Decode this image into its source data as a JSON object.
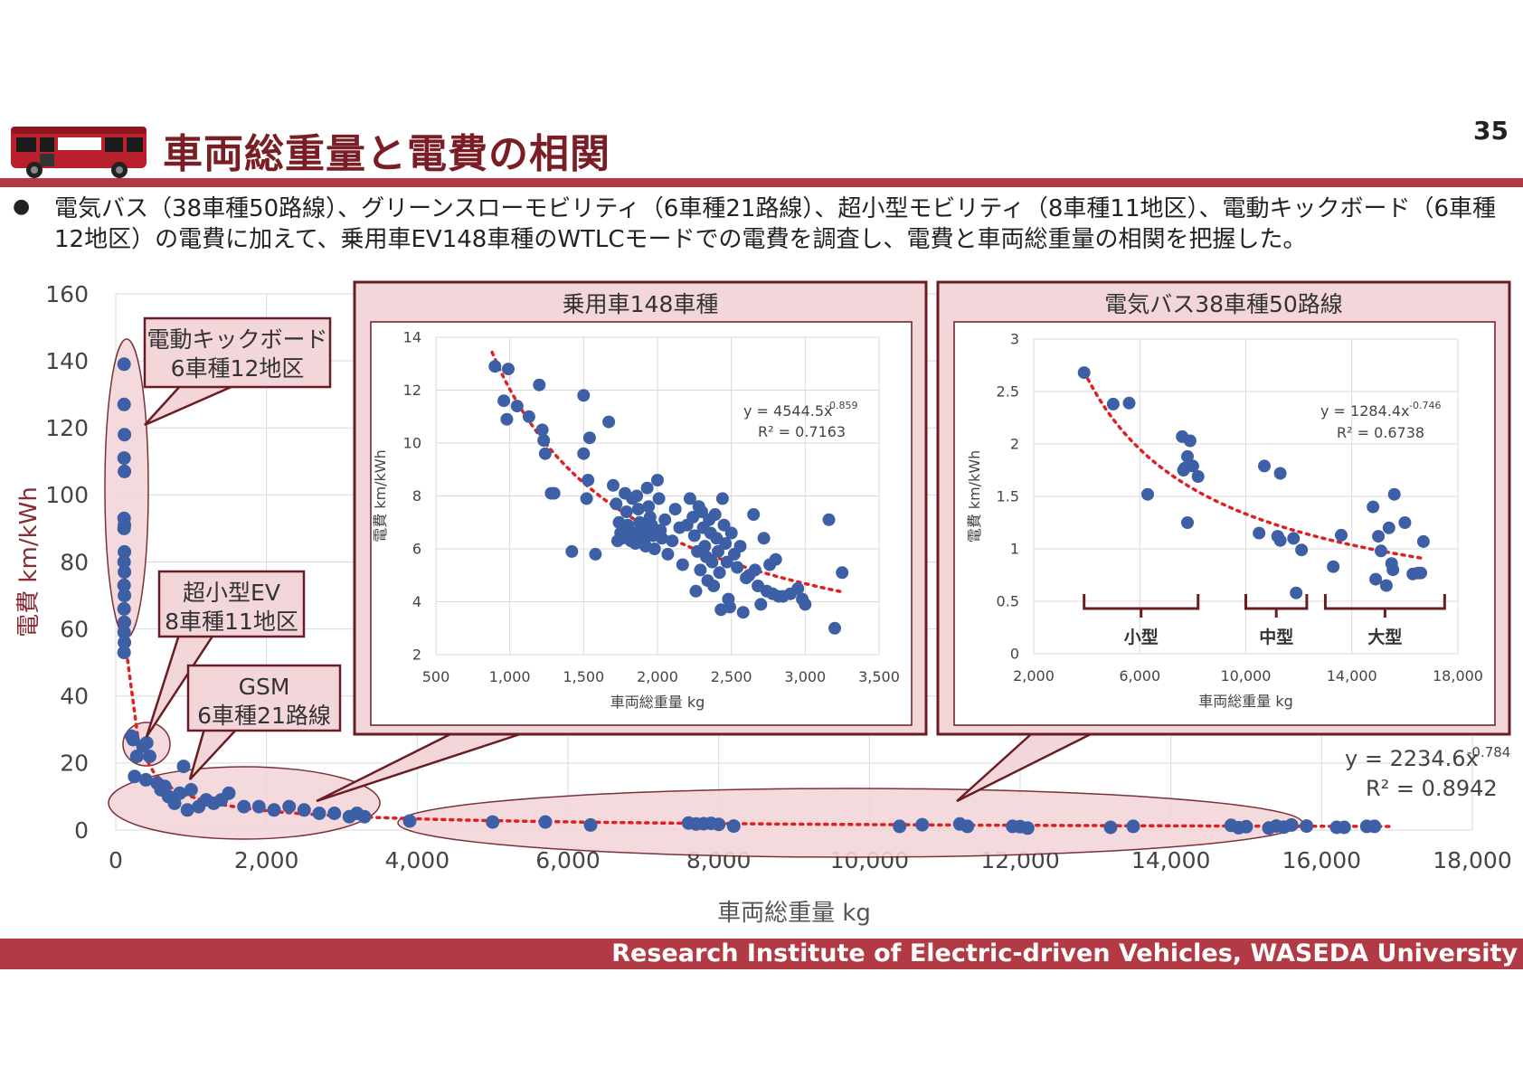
{
  "header": {
    "title": "車両総重量と電費の相関",
    "page_number": "35",
    "bus_icon": "bus-icon"
  },
  "bullet": {
    "text": "電気バス（38車種50路線）、グリーンスローモビリティ（6車種21路線）、超小型モビリティ（8車種11地区）、電動キックボード（6車種12地区）の電費に加えて、乗用車EV148車種のWTLCモードでの電費を調査し、電費と車両総重量の相関を把握した。"
  },
  "footer": {
    "text": "Research Institute of Electric-driven Vehicles, WASEDA University"
  },
  "colors": {
    "accent": "#b23a44",
    "title": "#7a1d24",
    "point": "#3d5fa6",
    "trend": "#e02020",
    "callout_fill": "#f3d6d9",
    "callout_stroke": "#6b1c22"
  },
  "chart_data": [
    {
      "id": "main",
      "type": "scatter",
      "xlabel": "車両総重量 kg",
      "ylabel": "電費 km/kWh",
      "xlim": [
        0,
        18000
      ],
      "ylim": [
        0,
        160
      ],
      "xticks": [
        "0",
        "2,000",
        "4,000",
        "6,000",
        "8,000",
        "10,000",
        "12,000",
        "14,000",
        "16,000",
        "18,000"
      ],
      "yticks": [
        "0",
        "20",
        "40",
        "60",
        "80",
        "100",
        "120",
        "140",
        "160"
      ],
      "trend": {
        "a": 2234.6,
        "b": -0.784,
        "equation": "y = 2234.6x",
        "exponent": "-0.784",
        "r2": "R² = 0.8942"
      },
      "groups": [
        {
          "name": "電動キックボード",
          "label_line1": "電動キックボード",
          "label_line2": "6車種12地区",
          "points": [
            [
              110,
              139
            ],
            [
              110,
              127
            ],
            [
              115,
              118
            ],
            [
              110,
              111
            ],
            [
              115,
              107
            ],
            [
              110,
              93
            ],
            [
              115,
              91
            ],
            [
              110,
              90
            ],
            [
              115,
              83
            ],
            [
              110,
              80
            ],
            [
              115,
              77
            ],
            [
              110,
              73
            ],
            [
              115,
              70
            ],
            [
              110,
              66
            ],
            [
              115,
              62
            ],
            [
              110,
              59
            ],
            [
              115,
              56
            ],
            [
              110,
              53
            ]
          ]
        },
        {
          "name": "超小型EV",
          "label_line1": "超小型EV",
          "label_line2": "8車種11地区",
          "points": [
            [
              210,
              28
            ],
            [
              280,
              22
            ],
            [
              410,
              26
            ],
            [
              450,
              22
            ],
            [
              360,
              25
            ],
            [
              230,
              27
            ]
          ]
        },
        {
          "name": "GSM",
          "label_line1": "GSM",
          "label_line2": "6車種21路線",
          "points": [
            [
              250,
              16
            ],
            [
              400,
              15
            ],
            [
              600,
              12
            ],
            [
              700,
              10
            ],
            [
              780,
              8
            ],
            [
              850,
              11
            ],
            [
              900,
              19
            ],
            [
              1000,
              12
            ],
            [
              1100,
              7
            ],
            [
              1200,
              9
            ],
            [
              1300,
              8
            ],
            [
              1500,
              11
            ],
            [
              1700,
              7
            ],
            [
              1900,
              7
            ],
            [
              2100,
              6
            ],
            [
              2300,
              7
            ],
            [
              2500,
              6
            ],
            [
              2700,
              5
            ],
            [
              2900,
              5
            ],
            [
              3100,
              4
            ],
            [
              3200,
              5
            ],
            [
              3300,
              4
            ],
            [
              550,
              14
            ],
            [
              650,
              13
            ],
            [
              950,
              6
            ],
            [
              1400,
              9
            ]
          ]
        },
        {
          "name": "乗用車",
          "points": []
        },
        {
          "name": "電気バス",
          "label_line1": "電気バス38車種50路線",
          "points": [
            [
              3900,
              2.7
            ],
            [
              5000,
              2.4
            ],
            [
              5700,
              2.4
            ],
            [
              6300,
              1.5
            ],
            [
              7600,
              2.1
            ],
            [
              7700,
              1.8
            ],
            [
              7800,
              1.9
            ],
            [
              7900,
              2.0
            ],
            [
              8000,
              1.7
            ],
            [
              8200,
              1.2
            ],
            [
              10400,
              1.1
            ],
            [
              10700,
              1.6
            ],
            [
              11200,
              1.8
            ],
            [
              11300,
              1.1
            ],
            [
              11900,
              1.1
            ],
            [
              12000,
              1.0
            ],
            [
              12100,
              0.6
            ],
            [
              13200,
              0.8
            ],
            [
              13500,
              1.1
            ],
            [
              14800,
              1.4
            ],
            [
              14900,
              0.7
            ],
            [
              15000,
              1.0
            ],
            [
              15300,
              0.6
            ],
            [
              15400,
              1.2
            ],
            [
              15500,
              0.9
            ],
            [
              15600,
              1.5
            ],
            [
              15800,
              1.2
            ],
            [
              16200,
              0.8
            ],
            [
              16300,
              0.8
            ],
            [
              16600,
              1.1
            ],
            [
              16700,
              1.1
            ]
          ]
        }
      ],
      "callouts": {
        "kick": "電動キックボード\n6車種12地区",
        "ev": "超小型EV\n8車種11地区",
        "gsm": "GSM\n6車種21路線"
      }
    },
    {
      "id": "inset-cars",
      "type": "scatter",
      "title": "乗用車148車種",
      "xlabel": "車両総重量 kg",
      "ylabel": "電費 km/kWh",
      "xlim": [
        500,
        3500
      ],
      "ylim": [
        2,
        14
      ],
      "xticks": [
        "500",
        "1,000",
        "1,500",
        "2,000",
        "2,500",
        "3,000",
        "3,500"
      ],
      "yticks": [
        "2",
        "4",
        "6",
        "8",
        "10",
        "12",
        "14"
      ],
      "trend": {
        "a": 4544.5,
        "b": -0.859,
        "equation": "y = 4544.5x",
        "exponent": "-0.859",
        "r2": "R² = 0.7163"
      },
      "points": [
        [
          900,
          12.9
        ],
        [
          990,
          12.8
        ],
        [
          960,
          11.6
        ],
        [
          1050,
          11.4
        ],
        [
          980,
          10.9
        ],
        [
          1130,
          11.0
        ],
        [
          1200,
          12.2
        ],
        [
          1220,
          10.5
        ],
        [
          1230,
          10.1
        ],
        [
          1240,
          9.6
        ],
        [
          1280,
          8.1
        ],
        [
          1300,
          8.1
        ],
        [
          1500,
          11.8
        ],
        [
          1500,
          9.6
        ],
        [
          1540,
          10.2
        ],
        [
          1520,
          7.9
        ],
        [
          1530,
          8.6
        ],
        [
          1420,
          5.9
        ],
        [
          1670,
          10.8
        ],
        [
          1700,
          8.4
        ],
        [
          1720,
          7.7
        ],
        [
          1730,
          6.3
        ],
        [
          1740,
          7.0
        ],
        [
          1750,
          6.6
        ],
        [
          1760,
          6.4
        ],
        [
          1780,
          8.1
        ],
        [
          1790,
          7.4
        ],
        [
          1800,
          6.9
        ],
        [
          1810,
          6.7
        ],
        [
          1820,
          6.3
        ],
        [
          1830,
          7.9
        ],
        [
          1840,
          6.5
        ],
        [
          1850,
          6.2
        ],
        [
          1860,
          8.0
        ],
        [
          1870,
          7.5
        ],
        [
          1880,
          7.0
        ],
        [
          1890,
          6.8
        ],
        [
          1900,
          6.6
        ],
        [
          1910,
          6.3
        ],
        [
          1920,
          6.1
        ],
        [
          1930,
          8.3
        ],
        [
          1940,
          7.6
        ],
        [
          1950,
          7.2
        ],
        [
          1960,
          6.9
        ],
        [
          1970,
          6.5
        ],
        [
          1980,
          6.0
        ],
        [
          2000,
          8.6
        ],
        [
          2010,
          7.9
        ],
        [
          2020,
          6.7
        ],
        [
          2030,
          6.4
        ],
        [
          2050,
          7.1
        ],
        [
          2070,
          5.8
        ],
        [
          2100,
          6.3
        ],
        [
          2120,
          7.5
        ],
        [
          2150,
          6.8
        ],
        [
          2170,
          5.4
        ],
        [
          2200,
          6.9
        ],
        [
          2220,
          7.9
        ],
        [
          2240,
          7.2
        ],
        [
          2250,
          6.5
        ],
        [
          2260,
          4.4
        ],
        [
          2270,
          5.9
        ],
        [
          2280,
          7.6
        ],
        [
          2290,
          5.2
        ],
        [
          2300,
          7.4
        ],
        [
          2310,
          6.8
        ],
        [
          2320,
          6.1
        ],
        [
          2330,
          5.7
        ],
        [
          2340,
          4.8
        ],
        [
          2350,
          7.1
        ],
        [
          2360,
          6.6
        ],
        [
          2370,
          5.5
        ],
        [
          2380,
          4.6
        ],
        [
          2390,
          7.3
        ],
        [
          2400,
          6.4
        ],
        [
          2410,
          5.9
        ],
        [
          2420,
          5.1
        ],
        [
          2430,
          3.7
        ],
        [
          2440,
          7.9
        ],
        [
          2450,
          6.9
        ],
        [
          2460,
          6.2
        ],
        [
          2470,
          5.5
        ],
        [
          2480,
          4.1
        ],
        [
          2490,
          3.8
        ],
        [
          2500,
          6.6
        ],
        [
          2520,
          5.8
        ],
        [
          2540,
          5.3
        ],
        [
          2560,
          6.1
        ],
        [
          2580,
          3.6
        ],
        [
          2600,
          4.9
        ],
        [
          2620,
          5.0
        ],
        [
          2650,
          7.3
        ],
        [
          2660,
          5.2
        ],
        [
          2680,
          4.6
        ],
        [
          2700,
          3.9
        ],
        [
          2720,
          6.4
        ],
        [
          2740,
          4.4
        ],
        [
          2760,
          5.4
        ],
        [
          2780,
          4.3
        ],
        [
          2800,
          5.6
        ],
        [
          2820,
          4.2
        ],
        [
          2850,
          4.2
        ],
        [
          2900,
          4.3
        ],
        [
          2950,
          4.5
        ],
        [
          2980,
          4.1
        ],
        [
          3000,
          3.9
        ],
        [
          3160,
          7.1
        ],
        [
          3200,
          3.0
        ],
        [
          3250,
          5.1
        ],
        [
          1580,
          5.8
        ]
      ]
    },
    {
      "id": "inset-bus",
      "type": "scatter",
      "title": "電気バス38車種50路線",
      "xlabel": "車両総重量 kg",
      "ylabel": "電費 km/kWh",
      "xlim": [
        2000,
        18000
      ],
      "ylim": [
        0,
        3
      ],
      "xticks": [
        "2,000",
        "6,000",
        "10,000",
        "14,000",
        "18,000"
      ],
      "yticks": [
        "0",
        "0.5",
        "1",
        "1.5",
        "2",
        "2.5",
        "3"
      ],
      "trend": {
        "a": 1284.4,
        "b": -0.746,
        "equation": "y = 1284.4x",
        "exponent": "-0.746",
        "r2": "R² = 0.6738"
      },
      "size_groups": [
        {
          "label": "小型",
          "x_range": [
            3900,
            8200
          ]
        },
        {
          "label": "中型",
          "x_range": [
            10000,
            12300
          ]
        },
        {
          "label": "大型",
          "x_range": [
            13000,
            17500
          ]
        }
      ],
      "points": [
        [
          3900,
          2.68
        ],
        [
          5000,
          2.38
        ],
        [
          5600,
          2.39
        ],
        [
          6300,
          1.52
        ],
        [
          7600,
          2.07
        ],
        [
          7700,
          1.77
        ],
        [
          7800,
          1.88
        ],
        [
          7900,
          2.03
        ],
        [
          8000,
          1.79
        ],
        [
          7650,
          1.75
        ],
        [
          7800,
          1.25
        ],
        [
          8200,
          1.69
        ],
        [
          10500,
          1.15
        ],
        [
          10700,
          1.79
        ],
        [
          11300,
          1.72
        ],
        [
          11200,
          1.12
        ],
        [
          11300,
          1.08
        ],
        [
          11800,
          1.1
        ],
        [
          11900,
          0.58
        ],
        [
          12100,
          0.99
        ],
        [
          13300,
          0.83
        ],
        [
          13600,
          1.13
        ],
        [
          14800,
          1.4
        ],
        [
          14900,
          0.71
        ],
        [
          15000,
          1.12
        ],
        [
          15100,
          0.98
        ],
        [
          15300,
          0.65
        ],
        [
          15400,
          1.2
        ],
        [
          15500,
          0.86
        ],
        [
          15550,
          0.8
        ],
        [
          15600,
          1.52
        ],
        [
          16000,
          1.25
        ],
        [
          16300,
          0.76
        ],
        [
          16600,
          0.77
        ],
        [
          16700,
          1.07
        ],
        [
          16500,
          0.77
        ]
      ]
    }
  ]
}
